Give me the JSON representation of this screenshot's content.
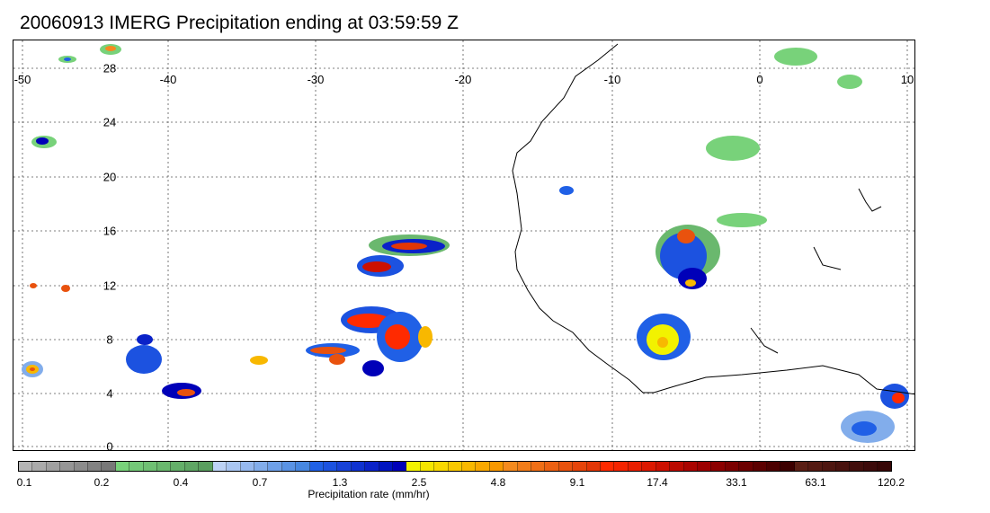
{
  "title": "20060913 IMERG Precipitation ending at 03:59:59 Z",
  "map": {
    "lon_labels": [
      "-50",
      "-40",
      "-30",
      "-20",
      "-10",
      "0",
      "10"
    ],
    "lat_labels": [
      "28",
      "24",
      "20",
      "16",
      "12",
      "8",
      "4",
      "0"
    ],
    "gridline_style": "dotted",
    "coastline_color": "#000000"
  },
  "colorbar": {
    "label": "Precipitation rate (mm/hr)",
    "tick_labels": [
      "0.1",
      "0.2",
      "0.4",
      "0.7",
      "1.3",
      "2.5",
      "4.8",
      "9.1",
      "17.4",
      "33.1",
      "63.1",
      "120.2"
    ],
    "colors": [
      "#b4b4b4",
      "#aaaaaa",
      "#a0a0a0",
      "#969696",
      "#8c8c8c",
      "#828282",
      "#787878",
      "#78d27a",
      "#74c978",
      "#6fc073",
      "#6ab86e",
      "#64af69",
      "#5fa664",
      "#5a9e5f",
      "#bcd2f5",
      "#a9c6f2",
      "#96b9ef",
      "#82adeb",
      "#6ea0e8",
      "#5a93e4",
      "#4787e0",
      "#2060e6",
      "#1c52e0",
      "#1842d8",
      "#0f32d0",
      "#0a22c8",
      "#0014c0",
      "#0000b8",
      "#f2f200",
      "#f5e600",
      "#f8d800",
      "#f8c800",
      "#f8b800",
      "#f8a800",
      "#f89800",
      "#f58a1e",
      "#f27c1a",
      "#ef6e16",
      "#ec6012",
      "#e9520e",
      "#e6440a",
      "#e33606",
      "#ff2a00",
      "#f52400",
      "#e81e00",
      "#dc1800",
      "#cc1000",
      "#bb0a00",
      "#aa0400",
      "#9c0000",
      "#8c0000",
      "#7c0000",
      "#6c0000",
      "#5c0000",
      "#4c0000",
      "#3c0000",
      "#5a1e14",
      "#541a12",
      "#4e1610",
      "#48120e",
      "#420e0c",
      "#3c0a0a",
      "#360606"
    ]
  }
}
